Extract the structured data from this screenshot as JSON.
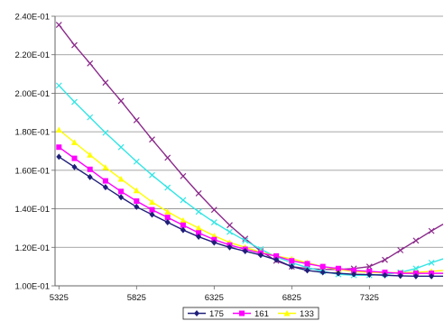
{
  "chart_data": {
    "type": "line",
    "title": "",
    "xlabel": "",
    "ylabel": "",
    "xlim": [
      5300,
      7800
    ],
    "ylim": [
      0.1,
      0.24
    ],
    "x_ticks": [
      "5325",
      "5825",
      "6325",
      "6825",
      "7325"
    ],
    "x_tick_values": [
      5325,
      5825,
      6325,
      6825,
      7325
    ],
    "y_ticks": [
      "1.00E-01",
      "1.20E-01",
      "1.40E-01",
      "1.60E-01",
      "1.80E-01",
      "2.00E-01",
      "2.20E-01",
      "2.40E-01"
    ],
    "y_tick_values": [
      0.1,
      0.12,
      0.14,
      0.16,
      0.18,
      0.2,
      0.22,
      0.24
    ],
    "grid": "horizontal",
    "legend_position": "bottom",
    "x": [
      5325,
      5425,
      5525,
      5625,
      5725,
      5825,
      5925,
      6025,
      6125,
      6225,
      6325,
      6425,
      6525,
      6625,
      6725,
      6825,
      6925,
      7025,
      7125,
      7225,
      7325,
      7425,
      7525,
      7625,
      7725,
      7800
    ],
    "series": [
      {
        "name": "175",
        "color": "#1f1f7a",
        "marker": "diamond",
        "values": [
          0.167,
          0.1617,
          0.1565,
          0.1512,
          0.146,
          0.141,
          0.137,
          0.133,
          0.129,
          0.1255,
          0.1225,
          0.12,
          0.118,
          0.116,
          0.1135,
          0.11,
          0.108,
          0.107,
          0.1065,
          0.106,
          0.1058,
          0.1055,
          0.1052,
          0.105,
          0.105,
          0.105
        ]
      },
      {
        "name": "161",
        "color": "#ff00ff",
        "marker": "square",
        "values": [
          0.172,
          0.1662,
          0.1605,
          0.1545,
          0.149,
          0.144,
          0.1395,
          0.1355,
          0.1315,
          0.1275,
          0.124,
          0.1212,
          0.119,
          0.117,
          0.1155,
          0.113,
          0.1115,
          0.11,
          0.109,
          0.108,
          0.1075,
          0.107,
          0.1065,
          0.1065,
          0.1065,
          0.1065
        ]
      },
      {
        "name": "133",
        "color": "#ffff00",
        "marker": "triangle",
        "values": [
          0.181,
          0.1745,
          0.168,
          0.1615,
          0.1555,
          0.1495,
          0.1435,
          0.1385,
          0.134,
          0.13,
          0.126,
          0.1225,
          0.12,
          0.1175,
          0.1155,
          0.114,
          0.112,
          0.11,
          0.1085,
          0.1075,
          0.107,
          0.1068,
          0.1068,
          0.107,
          0.1075,
          0.108
        ]
      },
      {
        "name": "",
        "color": "#33e5e5",
        "marker": "x",
        "values": [
          0.204,
          0.1955,
          0.1875,
          0.1795,
          0.172,
          0.1645,
          0.1575,
          0.151,
          0.1445,
          0.1385,
          0.133,
          0.128,
          0.1235,
          0.119,
          0.115,
          0.112,
          0.1095,
          0.1075,
          0.106,
          0.1055,
          0.1055,
          0.106,
          0.107,
          0.109,
          0.112,
          0.114
        ]
      },
      {
        "name": "",
        "color": "#8b2a8b",
        "marker": "x",
        "values": [
          0.2355,
          0.225,
          0.2155,
          0.2055,
          0.196,
          0.186,
          0.176,
          0.1665,
          0.157,
          0.148,
          0.1395,
          0.1315,
          0.1245,
          0.118,
          0.113,
          0.11,
          0.109,
          0.1085,
          0.1085,
          0.109,
          0.11,
          0.1135,
          0.1185,
          0.1235,
          0.1285,
          0.132
        ]
      }
    ]
  }
}
